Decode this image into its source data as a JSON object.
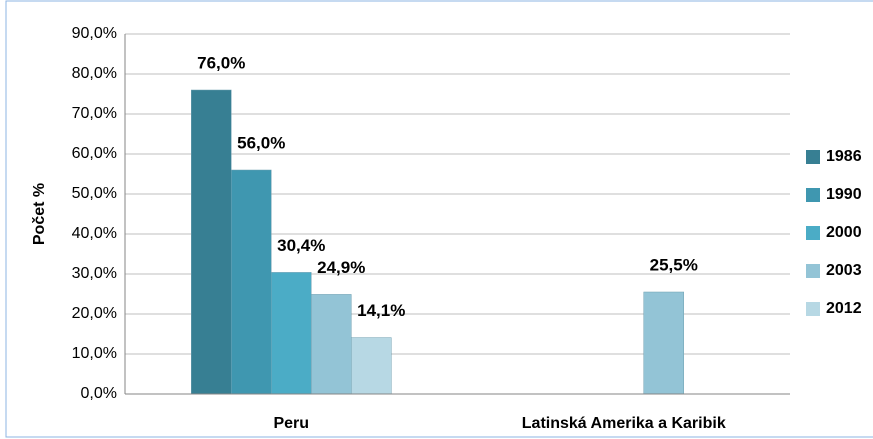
{
  "chart_data": {
    "type": "bar",
    "categories": [
      "Peru",
      "Latinská Amerika a Karibik"
    ],
    "y_label": "Počet %",
    "ylim": [
      0,
      90
    ],
    "yticks": [
      {
        "value": 0,
        "label": "0,0%"
      },
      {
        "value": 10,
        "label": "10,0%"
      },
      {
        "value": 20,
        "label": "20,0%"
      },
      {
        "value": 30,
        "label": "30,0%"
      },
      {
        "value": 40,
        "label": "40,0%"
      },
      {
        "value": 50,
        "label": "50,0%"
      },
      {
        "value": 60,
        "label": "60,0%"
      },
      {
        "value": 70,
        "label": "70,0%"
      },
      {
        "value": 80,
        "label": "80,0%"
      },
      {
        "value": 90,
        "label": "90,0%"
      }
    ],
    "grid": true,
    "legend": "right",
    "series": [
      {
        "name": "1986",
        "color": "#377f93",
        "values": [
          76.0,
          null
        ],
        "value_labels": [
          "76,0%",
          null
        ]
      },
      {
        "name": "1990",
        "color": "#3f97b0",
        "values": [
          56.0,
          null
        ],
        "value_labels": [
          "56,0%",
          null
        ]
      },
      {
        "name": "2000",
        "color": "#4bacc6",
        "values": [
          30.4,
          null
        ],
        "value_labels": [
          "30,4%",
          null
        ]
      },
      {
        "name": "2003",
        "color": "#93c4d6",
        "values": [
          24.9,
          25.5
        ],
        "value_labels": [
          "24,9%",
          "25,5%"
        ]
      },
      {
        "name": "2012",
        "color": "#b7d8e4",
        "values": [
          14.1,
          null
        ],
        "value_labels": [
          "14,1%",
          null
        ]
      }
    ]
  }
}
